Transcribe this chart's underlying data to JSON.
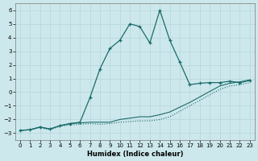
{
  "xlabel": "Humidex (Indice chaleur)",
  "xlim": [
    -0.5,
    23.5
  ],
  "ylim": [
    -3.5,
    6.5
  ],
  "xticks": [
    0,
    1,
    2,
    3,
    4,
    5,
    6,
    7,
    8,
    9,
    10,
    11,
    12,
    13,
    14,
    15,
    16,
    17,
    18,
    19,
    20,
    21,
    22,
    23
  ],
  "yticks": [
    -3,
    -2,
    -1,
    0,
    1,
    2,
    3,
    4,
    5,
    6
  ],
  "bg_color": "#cde8ec",
  "grid_color": "#b8d8de",
  "line_color": "#1a6b6b",
  "line1_x": [
    0,
    1,
    2,
    3,
    4,
    5,
    6,
    7,
    8,
    9,
    10,
    11,
    12,
    13,
    14,
    15,
    16,
    17,
    18,
    19,
    20,
    21,
    22,
    23
  ],
  "line1_y": [
    -2.8,
    -2.75,
    -2.6,
    -2.75,
    -2.5,
    -2.4,
    -2.35,
    -2.3,
    -2.35,
    -2.3,
    -2.2,
    -2.15,
    -2.1,
    -2.1,
    -2.0,
    -1.8,
    -1.4,
    -1.0,
    -0.6,
    -0.2,
    0.2,
    0.45,
    0.55,
    0.7
  ],
  "line2_x": [
    0,
    1,
    2,
    3,
    4,
    5,
    6,
    7,
    8,
    9,
    10,
    11,
    12,
    13,
    14,
    15,
    16,
    17,
    18,
    19,
    20,
    21,
    22,
    23
  ],
  "line2_y": [
    -2.8,
    -2.75,
    -2.55,
    -2.7,
    -2.45,
    -2.3,
    -2.25,
    -2.2,
    -2.2,
    -2.2,
    -2.0,
    -1.9,
    -1.8,
    -1.8,
    -1.65,
    -1.45,
    -1.1,
    -0.75,
    -0.35,
    0.05,
    0.45,
    0.65,
    0.75,
    0.9
  ],
  "line3_x": [
    0,
    1,
    2,
    3,
    4,
    5,
    6,
    7,
    8,
    9,
    10,
    11,
    12,
    13,
    14,
    15,
    16,
    17,
    18,
    19,
    20,
    21,
    22,
    23
  ],
  "line3_y": [
    -2.8,
    -2.75,
    -2.55,
    -2.7,
    -2.45,
    -2.3,
    -2.2,
    -0.4,
    1.7,
    3.2,
    3.8,
    5.0,
    4.8,
    3.6,
    6.0,
    3.8,
    2.2,
    0.55,
    0.65,
    0.7,
    0.7,
    0.8,
    0.7,
    0.85
  ]
}
